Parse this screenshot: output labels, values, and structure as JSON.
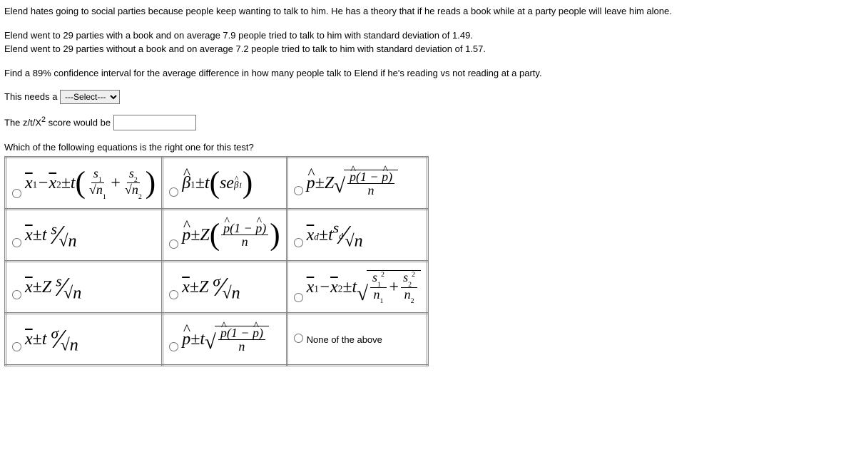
{
  "intro": "Elend hates going to social parties because people keep wanting to talk to him. He has a theory that if he reads a book while at a party people will leave him alone.",
  "data1": "Elend went to 29 parties with a book and on average 7.9 people tried to talk to him with standard deviation of 1.49.",
  "data2": "Elend went to 29 parties without a book and on average 7.2 people tried to talk to him with standard deviation of 1.57.",
  "task": "Find a 89% confidence interval for the average difference in how many people talk to Elend if he's reading vs not reading at a party.",
  "needs_label": "This needs a ",
  "select_placeholder": "---Select---",
  "score_label_a": "The z/t/X",
  "score_label_b": " score would be ",
  "eq_question": "Which of the following equations is the right one for this test?",
  "none_label": "None of the above"
}
